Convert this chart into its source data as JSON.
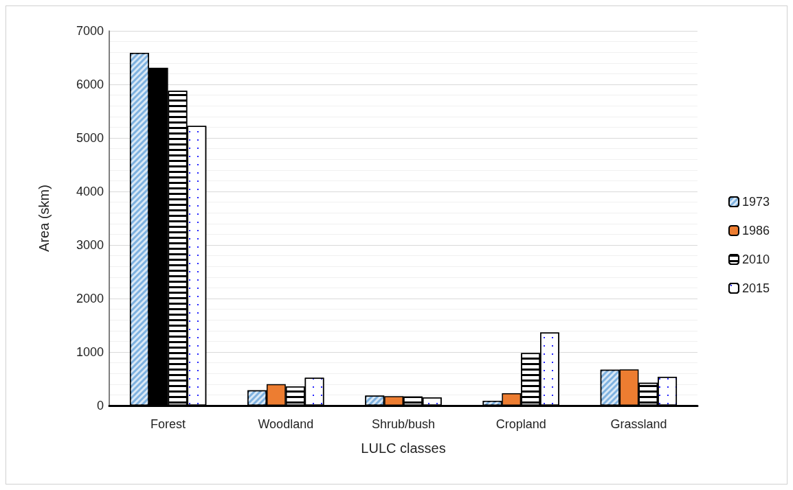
{
  "chart_data": {
    "type": "bar",
    "xlabel": "LULC classes",
    "ylabel": "Area (skm)",
    "categories": [
      "Forest",
      "Woodland",
      "Shrub/bush",
      "Cropland",
      "Grassland"
    ],
    "series": [
      {
        "name": "1973",
        "color": "#7fb2e0",
        "values": [
          6590,
          285,
          185,
          90,
          670
        ]
      },
      {
        "name": "1986",
        "color": "#ed7d31",
        "colors": [
          "#000000",
          "#ed7d31",
          "#ed7d31",
          "#ed7d31",
          "#ed7d31"
        ],
        "values": [
          6310,
          400,
          175,
          230,
          675
        ]
      },
      {
        "name": "2010",
        "color": "#ffffff",
        "values": [
          5880,
          360,
          170,
          980,
          425
        ]
      },
      {
        "name": "2015",
        "color": "#ffffff",
        "values": [
          5225,
          520,
          155,
          1365,
          540
        ]
      }
    ],
    "ylim": [
      0,
      7000
    ],
    "yticks": [
      0,
      1000,
      2000,
      3000,
      4000,
      5000,
      6000,
      7000
    ],
    "grid": "y",
    "legend": "right"
  }
}
